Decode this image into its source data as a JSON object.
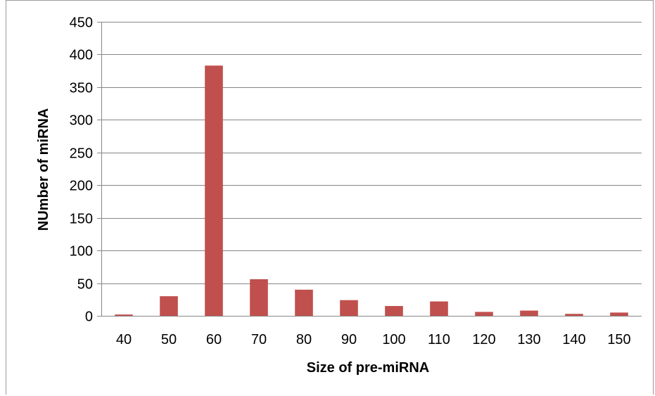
{
  "chart_data": {
    "type": "bar",
    "title": "",
    "xlabel": "Size of pre-miRNA",
    "ylabel": "NUmber of miRNA",
    "categories": [
      "40",
      "50",
      "60",
      "70",
      "80",
      "90",
      "100",
      "110",
      "120",
      "130",
      "140",
      "150"
    ],
    "values": [
      2,
      30,
      383,
      56,
      40,
      24,
      15,
      22,
      6,
      8,
      3,
      5
    ],
    "ylim": [
      0,
      450
    ],
    "yticks": [
      0,
      50,
      100,
      150,
      200,
      250,
      300,
      350,
      400,
      450
    ],
    "grid": true,
    "legend": "none",
    "bar_color": "#c0504d",
    "grid_color": "#868686"
  }
}
